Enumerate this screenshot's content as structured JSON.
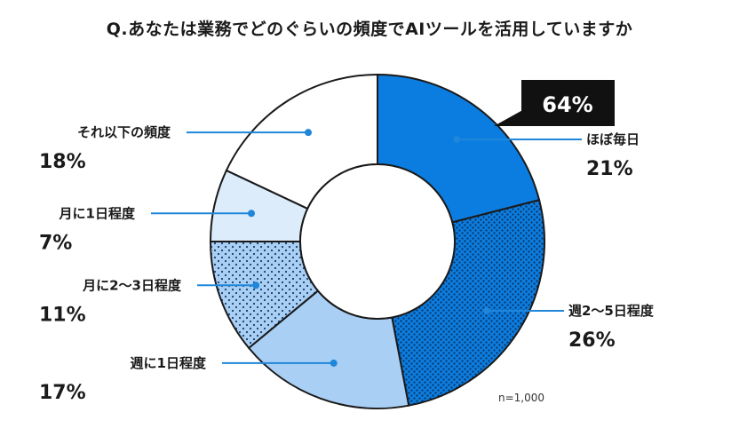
{
  "title": "Q.あなたは業務でどのぐらいの頻度でAIツールを活用していますか",
  "sample_note": "n=1,000",
  "callout": {
    "text": "64%"
  },
  "chart_data": {
    "type": "pie",
    "donut": true,
    "title": "Q.あなたは業務でどのぐらいの頻度でAIツールを活用していますか",
    "unit": "%",
    "categories": [
      "ほぼ毎日",
      "週2〜5日程度",
      "週に1日程度",
      "月に2〜3日程度",
      "月に1日程度",
      "それ以下の頻度"
    ],
    "values": [
      21,
      26,
      17,
      11,
      7,
      18
    ],
    "value_labels": [
      "21%",
      "26%",
      "17%",
      "11%",
      "7%",
      "18%"
    ],
    "colors": [
      "#0b7de0",
      "#0b7de0",
      "#a9cff5",
      "#a9cff5",
      "#dcecfb",
      "#ffffff"
    ],
    "patterns": [
      "solid",
      "dots",
      "solid",
      "dots",
      "solid",
      "solid"
    ]
  },
  "colors": {
    "accent": "#0b7de0",
    "leader": "#1f86d9",
    "callout_bg": "#111111"
  }
}
